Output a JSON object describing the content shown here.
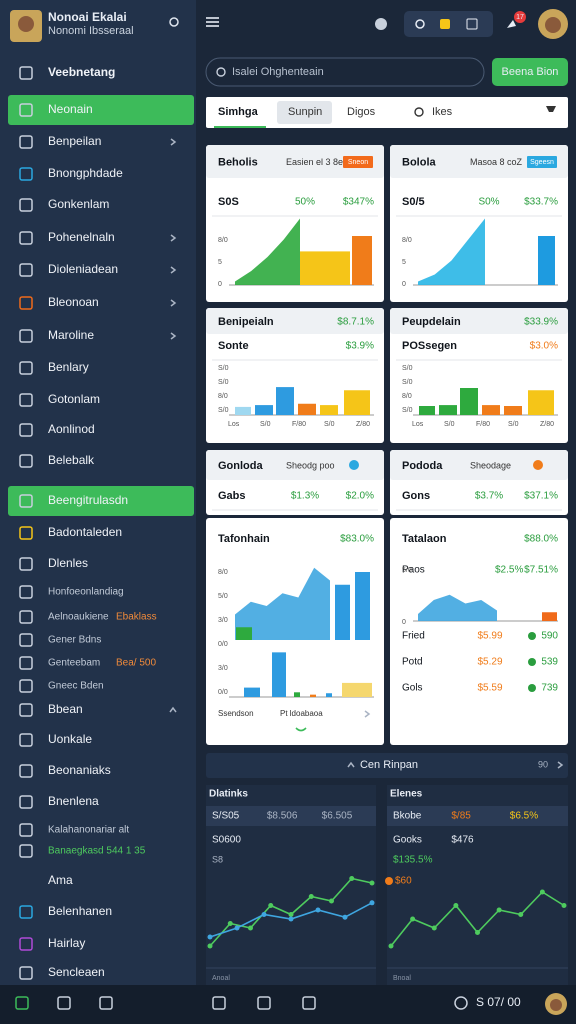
{
  "sidebar": {
    "user": {
      "name": "Nonoai Ekalai",
      "subtitle": "Nonomi Ibsseraal"
    },
    "items": [
      {
        "label": "Veebnetang"
      },
      {
        "label": "Neonain"
      },
      {
        "label": "Benpeilan"
      },
      {
        "label": "Bnongphdade"
      },
      {
        "label": "Gonkenlam"
      },
      {
        "label": "Pohenelnaln"
      },
      {
        "label": "Dioleniadean"
      },
      {
        "label": "Bleonoan"
      },
      {
        "label": "Maroline"
      },
      {
        "label": "Benlary"
      },
      {
        "label": "Gotonlam"
      },
      {
        "label": "Aonlinod"
      },
      {
        "label": "Belebalk"
      },
      {
        "label": "Beengitrulasdn"
      },
      {
        "label": "Badontaleden"
      },
      {
        "label": "Dlenles"
      },
      {
        "label": "Honfoeonlandiag"
      },
      {
        "label": "Aelnoaukiene",
        "tag": "Ebaklass"
      },
      {
        "label": "Gener Bdns"
      },
      {
        "label": "Genteebam",
        "tag": "Bea/ 500"
      },
      {
        "label": "Gneec Bden"
      },
      {
        "label": "Bbean"
      },
      {
        "label": "Uonkale"
      },
      {
        "label": "Beonaniaks"
      },
      {
        "label": "Bnenlena"
      },
      {
        "label": "Kalahanonariar alt"
      },
      {
        "label": "Banaegkasd 544 1 35"
      },
      {
        "label": "Ama"
      },
      {
        "label": "Belenhanen"
      },
      {
        "label": "Hairlay"
      },
      {
        "label": "Sencleaen"
      }
    ]
  },
  "topbar": {
    "badge": "17",
    "search_placeholder": "Isalei Ohghenteain",
    "button": "Beena Bion"
  },
  "tabs": [
    "Simhga",
    "Sunpin",
    "Digos",
    "Ikes"
  ],
  "cards": [
    {
      "title": "Beholis",
      "meta": "Easien el 3 8e",
      "tag": "Sneon",
      "tag_color": "#f26a1b",
      "label": "S0S",
      "v1": "50%",
      "v2": "$347%",
      "axis": [
        "8/0",
        "5",
        "0"
      ],
      "chart": {
        "area": [
          5,
          20,
          40,
          65,
          95
        ],
        "area_color": "#2eaa3e",
        "bars": [
          48,
          70
        ],
        "bar_colors": [
          "#f5c518",
          "#f07c1a"
        ]
      }
    },
    {
      "title": "Bolola",
      "meta": "Masoa 8 coZ",
      "tag": "Sgeesn",
      "tag_color": "#2aa8e0",
      "label": "S0/5",
      "v1": "S0%",
      "v2": "$33.7%",
      "axis": [
        "8/0",
        "5",
        "0"
      ],
      "chart": {
        "area": [
          5,
          15,
          35,
          65,
          95
        ],
        "area_color": "#29b6e6",
        "bars": [
          70
        ],
        "bar_colors": [
          "#1e9be0"
        ]
      }
    },
    {
      "title": "Benipeialn",
      "head_value": "$8.7.1%",
      "label": "Sonte",
      "v2": "$3.9%",
      "axis": [
        "S/0",
        "S/0",
        "8/0",
        "S/0"
      ],
      "xlabels": [
        "Los",
        "S/0",
        "F/80",
        "S/0",
        "Z/80"
      ],
      "chart": {
        "bars": [
          18,
          22,
          62,
          25,
          22,
          55
        ],
        "bar_colors": [
          "#9fd8f0",
          "#2e9be0",
          "#2e9be0",
          "#f07c1a",
          "#f5c518",
          "#f5c518"
        ]
      }
    },
    {
      "title": "Peupdelain",
      "head_value": "$33.9%",
      "label": "POSsegen",
      "v2": "$3.0%",
      "axis": [
        "S/0",
        "S/0",
        "8/0",
        "S/0"
      ],
      "xlabels": [
        "Los",
        "S/0",
        "F/80",
        "S/0",
        "Z/80"
      ],
      "chart": {
        "bars": [
          20,
          22,
          60,
          22,
          20,
          55
        ],
        "bar_colors": [
          "#2eaa3e",
          "#2eaa3e",
          "#2eaa3e",
          "#f07c1a",
          "#f07c1a",
          "#f5c518"
        ]
      }
    },
    {
      "title": "Gonloda",
      "meta": "Sheodg poo",
      "dot": "#2aa8e0",
      "label": "Gabs",
      "v1": "$1.3%",
      "v2": "$2.0%"
    },
    {
      "title": "Pododa",
      "meta": "Sheodage",
      "dot": "#f07c1a",
      "label": "Gons",
      "v1": "$3.7%",
      "v2": "$37.1%"
    },
    {
      "title": "Tafonhain",
      "v2": "$83.0%",
      "axis": [
        "8/0",
        "5/0",
        "3/0",
        "0/0",
        "3/0",
        "0/0"
      ],
      "footer": [
        "Ssendson",
        "Pt ldoabaoa"
      ],
      "chart": {
        "area": [
          30,
          45,
          40,
          55,
          50,
          85,
          70
        ],
        "area_color": "#3fa6e0",
        "bars": [
          15,
          65,
          80
        ],
        "bar_colors": [
          "#2eaa3e",
          "#2e9be0",
          "#2e9be0"
        ],
        "bars2": [
          20,
          95,
          10,
          5,
          8,
          30
        ],
        "bar2_colors": [
          "#2e9be0",
          "#2e9be0",
          "#2eaa3e",
          "#f07c1a",
          "#2e9be0",
          "#f5d76e"
        ]
      }
    },
    {
      "title": "Tatalaon",
      "v2": "$88.0%",
      "label": "Paos",
      "v1": "$2.5%",
      "v3": "$7.51%",
      "axis": [
        "5/0",
        "0"
      ],
      "chart": {
        "area": [
          20,
          60,
          75,
          50,
          60,
          30
        ],
        "area_color": "#3fa6e0",
        "bars": [
          25
        ],
        "bar_colors": [
          "#f06a1a"
        ]
      },
      "rows": [
        {
          "label": "Fried",
          "value": "$5.99",
          "change": "590"
        },
        {
          "label": "Potd",
          "value": "$5.29",
          "change": "539"
        },
        {
          "label": "Gols",
          "value": "$5.59",
          "change": "739"
        }
      ]
    }
  ],
  "more": {
    "label": "Cen Rinpan",
    "count": "90"
  },
  "panels": [
    {
      "title": "Dlatinks",
      "rows": [
        [
          "S/S05",
          "$8.506",
          "$6.505"
        ],
        [
          "S0600"
        ]
      ],
      "axis": [
        "S8"
      ],
      "xlabel": "Anoal",
      "lines": [
        {
          "color": "#4ecb5e",
          "values": [
            10,
            35,
            30,
            55,
            45,
            65,
            60,
            85,
            80
          ]
        },
        {
          "color": "#3fa6e0",
          "values": [
            20,
            30,
            45,
            40,
            50,
            42,
            58
          ]
        }
      ]
    },
    {
      "title": "Elenes",
      "rows": [
        [
          "Bkobe",
          "$/85",
          "$6.5%"
        ],
        [
          "Gooks",
          "$476"
        ]
      ],
      "notes": [
        "$135.5%",
        "$60"
      ],
      "xlabel": "Bnoal",
      "lines": [
        {
          "color": "#4ecb5e",
          "values": [
            10,
            40,
            30,
            55,
            25,
            50,
            45,
            70,
            55
          ]
        }
      ]
    }
  ],
  "bottombar": {
    "time": "S 07/ 00"
  }
}
